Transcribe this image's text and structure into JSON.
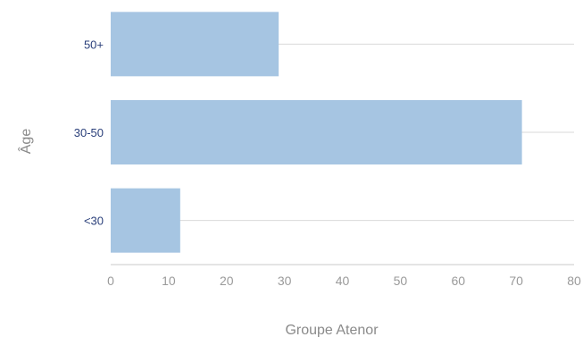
{
  "chart_data": {
    "type": "bar",
    "orientation": "horizontal",
    "categories": [
      "<30",
      "30-50",
      "50+"
    ],
    "values": [
      12,
      71,
      29
    ],
    "xlabel": "Groupe Atenor",
    "ylabel": "Âge",
    "xlim": [
      0,
      80
    ],
    "xticks": [
      "0",
      "10",
      "20",
      "30",
      "40",
      "50",
      "60",
      "70",
      "80"
    ],
    "grid": true,
    "bar_color": "#a6c5e2",
    "grid_color": "#d9d9d9",
    "category_label_color": "#2a3f7a",
    "tick_label_color": "#9a9a9a"
  }
}
